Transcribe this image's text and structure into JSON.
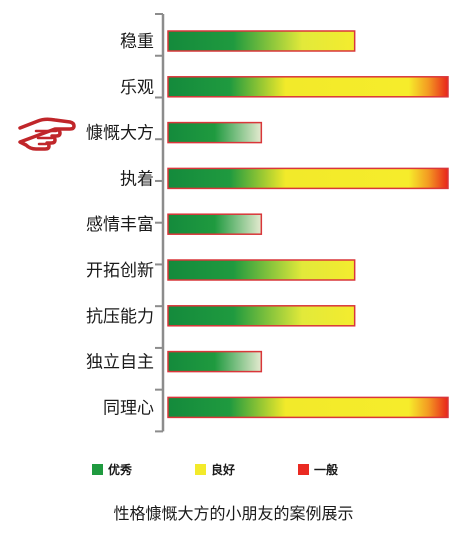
{
  "chart_data": {
    "type": "bar",
    "orientation": "horizontal",
    "categories": [
      "稳重",
      "乐观",
      "慷慨大方",
      "执着",
      "感情丰富",
      "开拓创新",
      "抗压能力",
      "独立自主",
      "同理心"
    ],
    "values": [
      2,
      3,
      1,
      3,
      1,
      2,
      2,
      1,
      3
    ],
    "xlim": [
      0,
      3
    ],
    "highlight_category": "慷慨大方",
    "legend": [
      {
        "label": "优秀",
        "color": "#1f9a3f"
      },
      {
        "label": "良好",
        "color": "#f3ea2a"
      },
      {
        "label": "一般",
        "color": "#ea2a22"
      }
    ],
    "legend_position": "bottom",
    "grid": false,
    "caption": "性格慷慨大方的小朋友的案例展示"
  },
  "colors": {
    "green": "#148a3c",
    "yellow": "#f6ec2b",
    "red": "#e8241b",
    "bar_border": "#d9363a",
    "axis": "#8c8c8c",
    "pointer": "#c0262a"
  },
  "icons": {
    "pointer": "pointing-hand-icon"
  }
}
